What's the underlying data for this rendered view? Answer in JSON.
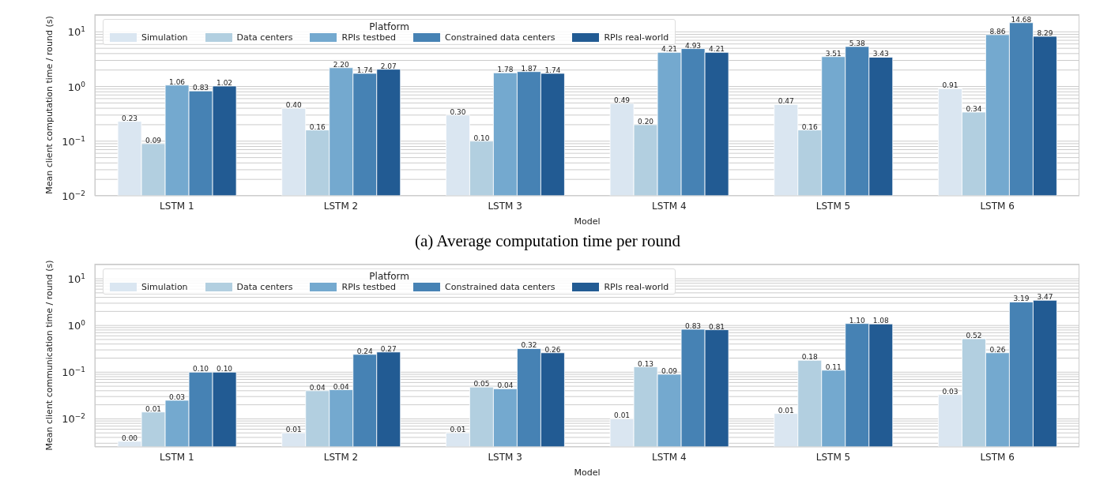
{
  "chart_data": [
    {
      "type": "bar",
      "xlabel": "Model",
      "ylabel": "Mean client computation time / round (s)",
      "legend_title": "Platform",
      "legend": "top left",
      "log": "y",
      "grid": "y",
      "annotations": [
        "(a) Average computation time per round"
      ],
      "categories": [
        "LSTM 1",
        "LSTM 2",
        "LSTM 3",
        "LSTM 4",
        "LSTM 5",
        "LSTM 6"
      ],
      "ylim": [
        0.01,
        21
      ],
      "yticks": [
        {
          "value": 0.01,
          "label": "10$^{−2}$"
        },
        {
          "value": 0.1,
          "label": "10$^{−1}$"
        },
        {
          "value": 1,
          "label": "10$^{0}$"
        },
        {
          "value": 10,
          "label": "10$^{1}$"
        }
      ],
      "series": [
        {
          "name": "Simulation",
          "color": "#dae6f1",
          "values": [
            0.23,
            0.4,
            0.3,
            0.49,
            0.47,
            0.91
          ],
          "value_labels": [
            "0.23",
            "0.40",
            "0.30",
            "0.49",
            "0.47",
            "0.91"
          ]
        },
        {
          "name": "Data centers",
          "color": "#b2cfe0",
          "values": [
            0.09,
            0.16,
            0.1,
            0.2,
            0.16,
            0.34
          ],
          "value_labels": [
            "0.09",
            "0.16",
            "0.10",
            "0.20",
            "0.16",
            "0.34"
          ]
        },
        {
          "name": "RPIs testbed",
          "color": "#74a9cf",
          "values": [
            1.06,
            2.2,
            1.78,
            4.21,
            3.51,
            8.86
          ],
          "value_labels": [
            "1.06",
            "2.20",
            "1.78",
            "4.21",
            "3.51",
            "8.86"
          ]
        },
        {
          "name": "Constrained data centers",
          "color": "#4682b4",
          "values": [
            0.83,
            1.74,
            1.87,
            4.93,
            5.38,
            14.68
          ],
          "value_labels": [
            "0.83",
            "1.74",
            "1.87",
            "4.93",
            "5.38",
            "14.68"
          ]
        },
        {
          "name": "RPIs real-world",
          "color": "#225b93",
          "values": [
            1.02,
            2.07,
            1.74,
            4.21,
            3.43,
            8.29
          ],
          "value_labels": [
            "1.02",
            "2.07",
            "1.74",
            "4.21",
            "3.43",
            "8.29"
          ]
        }
      ]
    },
    {
      "type": "bar",
      "xlabel": "Model",
      "ylabel": "Mean client communication time / round (s)",
      "legend_title": "Platform",
      "legend": "top left",
      "log": "y",
      "grid": "y",
      "categories": [
        "LSTM 1",
        "LSTM 2",
        "LSTM 3",
        "LSTM 4",
        "LSTM 5",
        "LSTM 6"
      ],
      "ylim": [
        0.0025,
        21
      ],
      "yticks": [
        {
          "value": 0.01,
          "label": "10$^{−2}$"
        },
        {
          "value": 0.1,
          "label": "10$^{−1}$"
        },
        {
          "value": 1,
          "label": "10$^{0}$"
        },
        {
          "value": 10,
          "label": "10$^{1}$"
        }
      ],
      "series": [
        {
          "name": "Simulation",
          "color": "#dae6f1",
          "values": [
            0.0033,
            0.005,
            0.005,
            0.01,
            0.013,
            0.033
          ],
          "value_labels": [
            "0.00",
            "0.01",
            "0.01",
            "0.01",
            "0.01",
            "0.03"
          ]
        },
        {
          "name": "Data centers",
          "color": "#b2cfe0",
          "values": [
            0.014,
            0.04,
            0.048,
            0.13,
            0.18,
            0.52
          ],
          "value_labels": [
            "0.01",
            "0.04",
            "0.05",
            "0.13",
            "0.18",
            "0.52"
          ]
        },
        {
          "name": "RPIs testbed",
          "color": "#74a9cf",
          "values": [
            0.025,
            0.042,
            0.044,
            0.09,
            0.11,
            0.26
          ],
          "value_labels": [
            "0.03",
            "0.04",
            "0.04",
            "0.09",
            "0.11",
            "0.26"
          ]
        },
        {
          "name": "Constrained data centers",
          "color": "#4682b4",
          "values": [
            0.1,
            0.24,
            0.32,
            0.83,
            1.1,
            3.19
          ],
          "value_labels": [
            "0.10",
            "0.24",
            "0.32",
            "0.83",
            "1.10",
            "3.19"
          ]
        },
        {
          "name": "RPIs real-world",
          "color": "#225b93",
          "values": [
            0.1,
            0.27,
            0.26,
            0.81,
            1.08,
            3.47
          ],
          "value_labels": [
            "0.10",
            "0.27",
            "0.26",
            "0.81",
            "1.08",
            "3.47"
          ]
        }
      ]
    }
  ]
}
